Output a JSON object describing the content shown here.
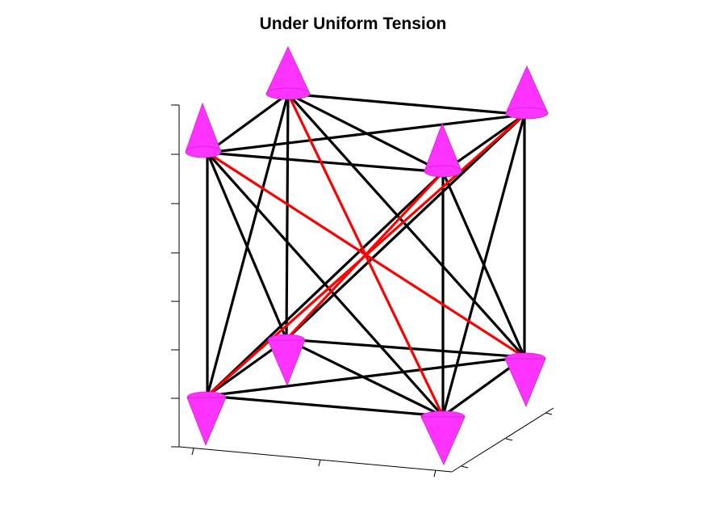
{
  "figure": {
    "title": "Under Uniform Tension"
  },
  "colors": {
    "background": "#ffffff",
    "member": "#000000",
    "tension_member": "#ff0000",
    "force_cone": "#ff33ff",
    "axis": "#000000"
  },
  "diagram": {
    "node_count": 8,
    "member_count": 28,
    "tension_member_count": 4,
    "force_cone_count": 8,
    "axis_ticks_visible": true,
    "tick_labels_visible": false
  }
}
